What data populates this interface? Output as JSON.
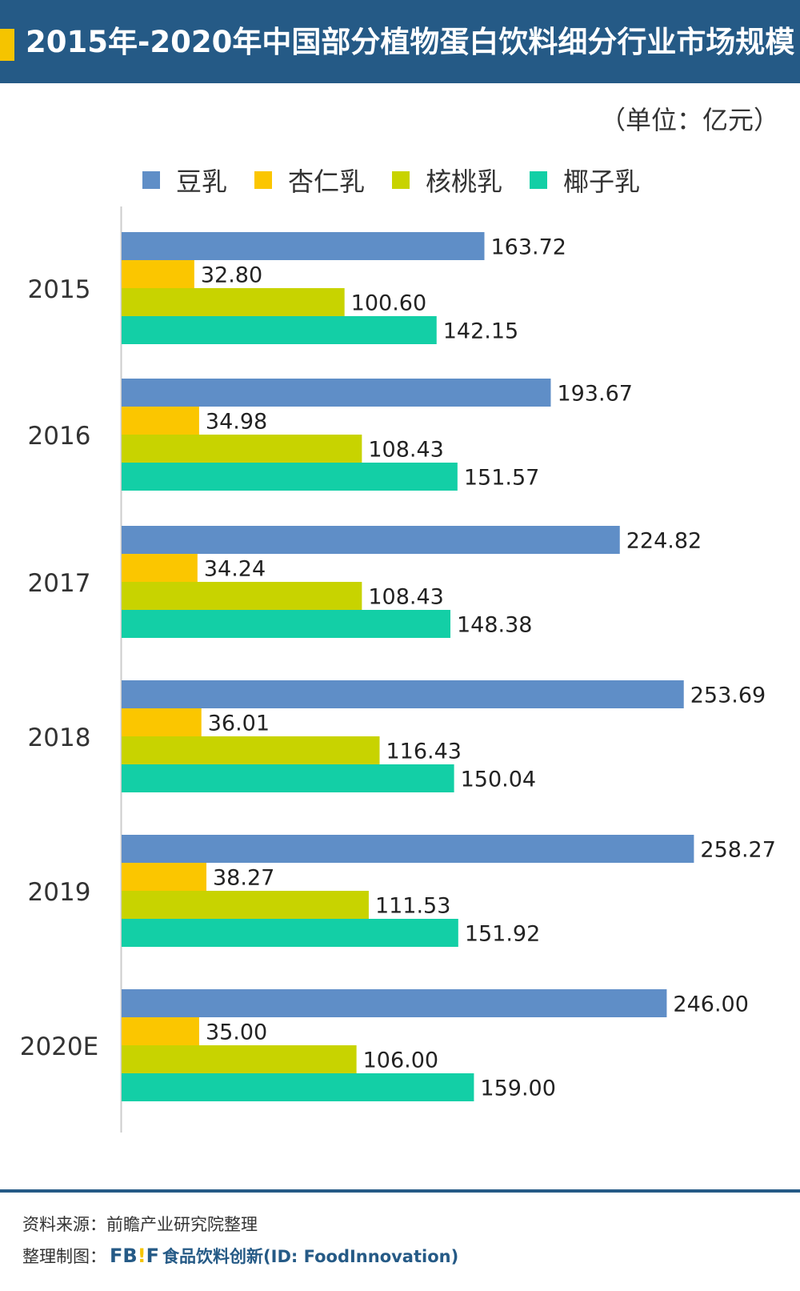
{
  "title": "2015年-2020年中国部分植物蛋白饮料细分行业市场规模",
  "unit_label": "（单位：亿元）",
  "legend": [
    {
      "label": "豆乳",
      "color": "#5f8ec7"
    },
    {
      "label": "杏仁乳",
      "color": "#fbc600"
    },
    {
      "label": "核桃乳",
      "color": "#c8d300"
    },
    {
      "label": "椰子乳",
      "color": "#13cfa6"
    }
  ],
  "footer": {
    "source": "资料来源：前瞻产业研究院整理",
    "credit_prefix": "整理制图：",
    "logo_left": "FB",
    "logo_mark": "!",
    "logo_right": "F",
    "credit_org": "食品饮料创新(ID: FoodInnovation)"
  },
  "chart_data": {
    "type": "bar",
    "orientation": "horizontal",
    "title": "2015年-2020年中国部分植物蛋白饮料细分行业市场规模",
    "unit": "（单位：亿元）",
    "categories": [
      "2015",
      "2016",
      "2017",
      "2018",
      "2019",
      "2020E"
    ],
    "series": [
      {
        "name": "豆乳",
        "color": "#5f8ec7",
        "values": [
          163.72,
          193.67,
          224.82,
          253.69,
          258.27,
          246.0
        ],
        "labels": [
          "163.72",
          "193.67",
          "224.82",
          "253.69",
          "258.27",
          "246.00"
        ]
      },
      {
        "name": "杏仁乳",
        "color": "#fbc600",
        "values": [
          32.8,
          34.98,
          34.24,
          36.01,
          38.27,
          35.0
        ],
        "labels": [
          "32.80",
          "34.98",
          "34.24",
          "36.01",
          "38.27",
          "35.00"
        ]
      },
      {
        "name": "核桃乳",
        "color": "#c8d300",
        "values": [
          100.6,
          108.43,
          108.43,
          116.43,
          111.53,
          106.0
        ],
        "labels": [
          "100.60",
          "108.43",
          "108.43",
          "116.43",
          "111.53",
          "106.00"
        ]
      },
      {
        "name": "椰子乳",
        "color": "#13cfa6",
        "values": [
          142.15,
          151.57,
          148.38,
          150.04,
          151.92,
          159.0
        ],
        "labels": [
          "142.15",
          "151.57",
          "148.38",
          "150.04",
          "151.92",
          "159.00"
        ]
      }
    ],
    "legend_position": "top",
    "grid": false
  }
}
